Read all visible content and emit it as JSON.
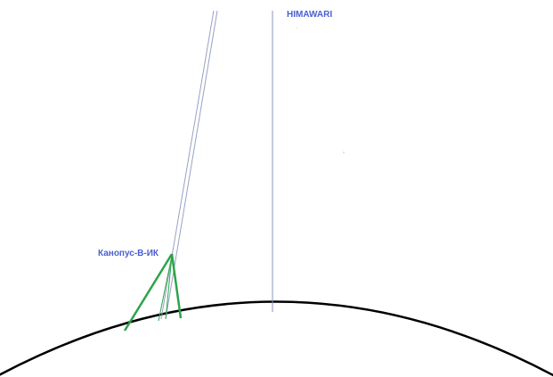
{
  "labels": {
    "himawari": "HIMAWARI",
    "kanopus": "Канопус-В-ИК"
  },
  "colors": {
    "label": "#4a5fd0",
    "satellite_line": "#8b93b8",
    "orbit_line": "#9aa1c4",
    "view_cone": "#2ba34a",
    "earth": "#000000",
    "background": "#ffffff"
  }
}
